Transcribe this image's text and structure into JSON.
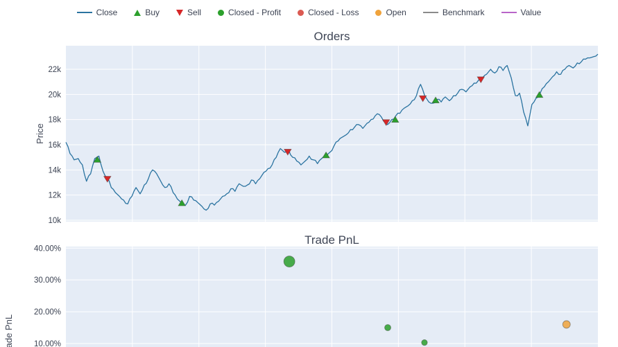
{
  "style": {
    "plot_bg": "#e5ecf6",
    "grid_color": "#ffffff",
    "tick_color": "#3b4252",
    "title_color": "#3f4656"
  },
  "legend": {
    "items": [
      {
        "label": "Close",
        "type": "line",
        "color": "#2a73a0"
      },
      {
        "label": "Buy",
        "type": "triangle-up",
        "color": "#2ca02c"
      },
      {
        "label": "Sell",
        "type": "triangle-down",
        "color": "#d62728"
      },
      {
        "label": "Closed - Profit",
        "type": "circle",
        "color": "#2ca02c"
      },
      {
        "label": "Closed - Loss",
        "type": "circle",
        "color": "#db5a52"
      },
      {
        "label": "Open",
        "type": "circle",
        "color": "#f0a33c"
      },
      {
        "label": "Benchmark",
        "type": "line",
        "color": "#8a8a8a"
      },
      {
        "label": "Value",
        "type": "line",
        "color": "#b864c8"
      }
    ]
  },
  "chart_data": [
    {
      "type": "line",
      "title": "Orders",
      "ylabel": "Price",
      "ylim": [
        9890,
        23870
      ],
      "yticks": [
        {
          "value": 10000,
          "label": "10k"
        },
        {
          "value": 12000,
          "label": "12k"
        },
        {
          "value": 14000,
          "label": "14k"
        },
        {
          "value": 16000,
          "label": "16k"
        },
        {
          "value": 18000,
          "label": "18k"
        },
        {
          "value": 20000,
          "label": "20k"
        },
        {
          "value": 22000,
          "label": "22k"
        }
      ],
      "xgrid": [
        0.125,
        0.25,
        0.375,
        0.5,
        0.625,
        0.75,
        0.875
      ],
      "series": [
        {
          "name": "Close",
          "color": "#2a73a0",
          "values": [
            16200,
            15300,
            14800,
            14900,
            14400,
            13100,
            13700,
            14900,
            15100,
            13900,
            13400,
            12600,
            12200,
            11900,
            11600,
            11300,
            11900,
            12600,
            12100,
            12800,
            13300,
            14000,
            13700,
            13100,
            12600,
            12900,
            12200,
            11700,
            11400,
            11200,
            11900,
            11600,
            11400,
            11100,
            10800,
            11300,
            11200,
            11500,
            11900,
            12100,
            12500,
            12300,
            12900,
            12700,
            12800,
            13200,
            12900,
            13300,
            13800,
            14100,
            14400,
            15000,
            15700,
            15400,
            15600,
            15000,
            14700,
            14400,
            14700,
            15100,
            14800,
            14500,
            14900,
            15200,
            15400,
            15900,
            16300,
            16600,
            16800,
            17200,
            17400,
            17600,
            17300,
            17700,
            18000,
            18300,
            18400,
            17900,
            17600,
            18000,
            18300,
            18500,
            18900,
            19100,
            19500,
            19900,
            20800,
            19900,
            19400,
            19300,
            19600,
            19400,
            19800,
            19500,
            19900,
            20100,
            20400,
            20200,
            20600,
            20900,
            21100,
            21300,
            21600,
            22000,
            21700,
            22200,
            21900,
            22300,
            21300,
            19900,
            20100,
            18600,
            17500,
            19200,
            19700,
            20100,
            20600,
            21000,
            21400,
            21800,
            21600,
            22000,
            22300,
            22100,
            22500,
            22600,
            22800,
            22900,
            23000,
            23200
          ]
        }
      ],
      "markers": [
        {
          "type": "buy",
          "symbol": "triangle-up",
          "color": "#2ca02c",
          "points": [
            {
              "x": 0.059,
              "y": 14800
            },
            {
              "x": 0.218,
              "y": 11350
            },
            {
              "x": 0.489,
              "y": 15150
            },
            {
              "x": 0.619,
              "y": 17980
            },
            {
              "x": 0.695,
              "y": 19520
            },
            {
              "x": 0.89,
              "y": 19950
            }
          ]
        },
        {
          "type": "sell",
          "symbol": "triangle-down",
          "color": "#d62728",
          "points": [
            {
              "x": 0.078,
              "y": 13300
            },
            {
              "x": 0.417,
              "y": 15450
            },
            {
              "x": 0.602,
              "y": 17800
            },
            {
              "x": 0.671,
              "y": 19700
            },
            {
              "x": 0.78,
              "y": 21200
            }
          ]
        }
      ]
    },
    {
      "type": "scatter",
      "title": "Trade PnL",
      "ylabel": "Trade PnL",
      "ylim": [
        8.9,
        40.5
      ],
      "yticks": [
        {
          "value": 10,
          "label": "10.00%"
        },
        {
          "value": 20,
          "label": "20.00%"
        },
        {
          "value": 30,
          "label": "30.00%"
        },
        {
          "value": 40,
          "label": "40.00%"
        }
      ],
      "xgrid": [
        0.125,
        0.25,
        0.375,
        0.5,
        0.625,
        0.75,
        0.875
      ],
      "points": [
        {
          "x": 0.42,
          "y": 35.8,
          "size": 8,
          "kind": "closed-profit",
          "color": "#2ca02c"
        },
        {
          "x": 0.605,
          "y": 15.0,
          "size": 4.5,
          "kind": "closed-profit",
          "color": "#2ca02c"
        },
        {
          "x": 0.674,
          "y": 10.3,
          "size": 4.2,
          "kind": "closed-profit",
          "color": "#2ca02c"
        },
        {
          "x": 0.941,
          "y": 16.0,
          "size": 5.5,
          "kind": "open",
          "color": "#f0a33c"
        }
      ]
    }
  ]
}
